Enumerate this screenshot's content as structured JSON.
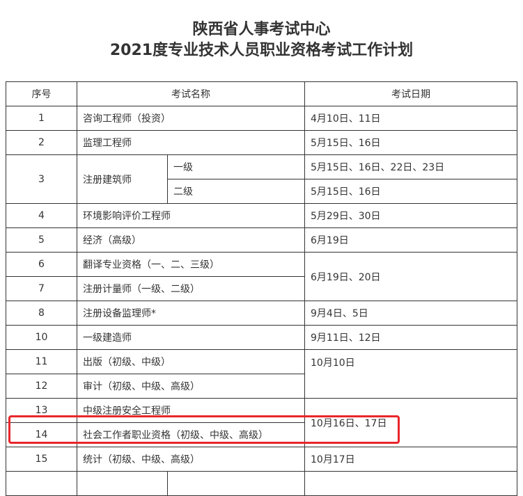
{
  "title": {
    "line1": "陕西省人事考试中心",
    "line2": "2021度专业技术人员职业资格考试工作计划"
  },
  "table": {
    "headers": [
      "序号",
      "考试名称",
      "考试日期"
    ],
    "rows": [
      {
        "no": "1",
        "name": "咨询工程师（投资）",
        "date": "4月10日、11日"
      },
      {
        "no": "2",
        "name": "监理工程师",
        "date": "5月15日、16日"
      },
      {
        "no": "3",
        "name": "注册建筑师",
        "levels": [
          {
            "level": "一级",
            "date": "5月15日、16日、22日、23日"
          },
          {
            "level": "二级",
            "date": "5月15日、16日"
          }
        ]
      },
      {
        "no": "4",
        "name": "环境影响评价工程师",
        "date": "5月29日、30日"
      },
      {
        "no": "5",
        "name": "经济（高级）",
        "date": "6月19日"
      },
      {
        "no": "6",
        "name": "翻译专业资格（一、二、三级）",
        "date": "6月19日、20日",
        "date_span": 2
      },
      {
        "no": "7",
        "name": "注册计量师（一级、二级）"
      },
      {
        "no": "8",
        "name": "注册设备监理师*",
        "date": "9月4日、5日"
      },
      {
        "no": "10",
        "name": "一级建造师",
        "date": "9月11日、12日"
      },
      {
        "no": "11",
        "name": "出版（初级、中级）",
        "date": "10月10日",
        "date_span": 2
      },
      {
        "no": "12",
        "name": "审计（初级、中级、高级）"
      },
      {
        "no": "13",
        "name": "中级注册安全工程师",
        "date": "10月16日、17日",
        "date_span": 2
      },
      {
        "no": "14",
        "name": "社会工作者职业资格（初级、中级、高级）",
        "highlighted": true
      },
      {
        "no": "15",
        "name": "统计（初级、中级、高级）",
        "date": "10月17日"
      }
    ]
  },
  "highlight_color": "#e8262b"
}
